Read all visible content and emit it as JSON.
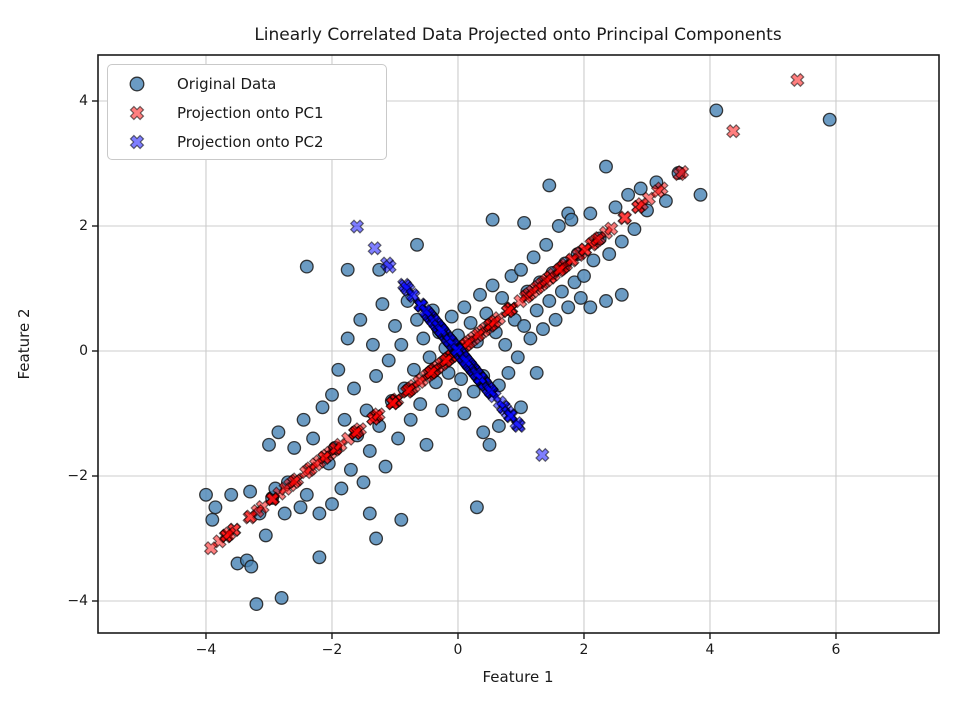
{
  "chart_data": {
    "type": "scatter",
    "title": "Linearly Correlated Data Projected onto Principal Components",
    "xlabel": "Feature 1",
    "ylabel": "Feature 2",
    "xlim": [
      -5.714,
      7.635
    ],
    "ylim": [
      -4.512,
      4.736
    ],
    "xticks": [
      -4,
      -2,
      0,
      2,
      4,
      6
    ],
    "yticks": [
      -4,
      -2,
      0,
      2,
      4
    ],
    "grid": true,
    "grid_color": "#cccccc",
    "spine_color": "#1a1a1a",
    "legend_position": "upper left",
    "pc1": [
      0.779,
      0.627
    ],
    "pc2": [
      -0.627,
      0.779
    ],
    "series": [
      {
        "name": "Original Data",
        "marker": "circle",
        "color": "#4682B4",
        "edge_color": "#1a1a1a",
        "alpha": 0.8,
        "source": "points"
      },
      {
        "name": "Projection onto PC1",
        "marker": "X",
        "color": "#FF0000",
        "edge_color": "#000000",
        "alpha": 0.5,
        "source": "projection of points onto pc1"
      },
      {
        "name": "Projection onto PC2",
        "marker": "X",
        "color": "#0000FF",
        "edge_color": "#000000",
        "alpha": 0.5,
        "source": "projection of points onto pc2"
      }
    ],
    "points": [
      [
        -4.0,
        -2.3
      ],
      [
        -3.9,
        -2.7
      ],
      [
        -3.85,
        -2.5
      ],
      [
        -3.6,
        -2.3
      ],
      [
        -3.5,
        -3.4
      ],
      [
        -3.35,
        -3.35
      ],
      [
        -3.28,
        -3.45
      ],
      [
        -3.3,
        -2.25
      ],
      [
        -3.2,
        -4.05
      ],
      [
        -3.15,
        -2.6
      ],
      [
        -3.05,
        -2.95
      ],
      [
        -3.0,
        -1.5
      ],
      [
        -2.95,
        -2.35
      ],
      [
        -2.8,
        -3.95
      ],
      [
        -2.9,
        -2.2
      ],
      [
        -2.85,
        -1.3
      ],
      [
        -2.75,
        -2.6
      ],
      [
        -2.7,
        -2.1
      ],
      [
        -2.6,
        -1.55
      ],
      [
        -2.5,
        -2.5
      ],
      [
        -2.45,
        -1.1
      ],
      [
        -2.4,
        1.35
      ],
      [
        -2.4,
        -2.3
      ],
      [
        -2.3,
        -1.4
      ],
      [
        -2.2,
        -3.3
      ],
      [
        -2.2,
        -2.6
      ],
      [
        -2.15,
        -0.9
      ],
      [
        -2.05,
        -1.8
      ],
      [
        -2.0,
        -2.45
      ],
      [
        -2.0,
        -0.7
      ],
      [
        -1.95,
        -1.55
      ],
      [
        -1.9,
        -0.3
      ],
      [
        -1.85,
        -2.2
      ],
      [
        -1.8,
        -1.1
      ],
      [
        -1.75,
        1.3
      ],
      [
        -1.75,
        0.2
      ],
      [
        -1.7,
        -1.9
      ],
      [
        -1.65,
        -0.6
      ],
      [
        -1.6,
        -1.35
      ],
      [
        -1.55,
        0.5
      ],
      [
        -1.5,
        -2.1
      ],
      [
        -1.45,
        -0.95
      ],
      [
        -1.4,
        -2.6
      ],
      [
        -1.4,
        -1.6
      ],
      [
        -1.35,
        0.1
      ],
      [
        -1.3,
        -3.0
      ],
      [
        -1.3,
        -0.4
      ],
      [
        -1.25,
        1.3
      ],
      [
        -1.25,
        -1.2
      ],
      [
        -1.2,
        0.75
      ],
      [
        -1.15,
        -1.85
      ],
      [
        -1.1,
        -0.15
      ],
      [
        -1.05,
        -0.8
      ],
      [
        -1.0,
        0.4
      ],
      [
        -0.95,
        -1.4
      ],
      [
        -0.9,
        -2.7
      ],
      [
        -0.9,
        0.1
      ],
      [
        -0.85,
        -0.6
      ],
      [
        -0.8,
        0.8
      ],
      [
        -0.75,
        -1.1
      ],
      [
        -0.7,
        -0.3
      ],
      [
        -0.65,
        1.7
      ],
      [
        -0.65,
        0.5
      ],
      [
        -0.6,
        -0.85
      ],
      [
        -0.55,
        0.2
      ],
      [
        -0.5,
        -1.5
      ],
      [
        -0.45,
        -0.1
      ],
      [
        -0.4,
        0.65
      ],
      [
        -0.35,
        -0.5
      ],
      [
        -0.3,
        0.3
      ],
      [
        -0.25,
        -0.95
      ],
      [
        -0.2,
        0.05
      ],
      [
        -0.15,
        -0.35
      ],
      [
        -0.1,
        0.55
      ],
      [
        -0.05,
        -0.7
      ],
      [
        0.0,
        0.25
      ],
      [
        0.05,
        -0.45
      ],
      [
        0.1,
        -1.0
      ],
      [
        0.1,
        0.7
      ],
      [
        0.15,
        -0.2
      ],
      [
        0.2,
        0.45
      ],
      [
        0.25,
        -0.65
      ],
      [
        0.3,
        -2.5
      ],
      [
        0.3,
        0.15
      ],
      [
        0.35,
        0.9
      ],
      [
        0.4,
        -1.3
      ],
      [
        0.4,
        -0.4
      ],
      [
        0.45,
        0.6
      ],
      [
        0.5,
        -1.5
      ],
      [
        0.55,
        2.1
      ],
      [
        0.55,
        1.05
      ],
      [
        0.6,
        0.3
      ],
      [
        0.65,
        -1.2
      ],
      [
        0.65,
        -0.55
      ],
      [
        0.7,
        0.85
      ],
      [
        0.75,
        0.1
      ],
      [
        0.8,
        -0.35
      ],
      [
        0.85,
        1.2
      ],
      [
        0.9,
        0.5
      ],
      [
        0.95,
        -0.1
      ],
      [
        1.0,
        -0.9
      ],
      [
        1.0,
        1.3
      ],
      [
        1.05,
        2.05
      ],
      [
        1.05,
        0.4
      ],
      [
        1.1,
        0.95
      ],
      [
        1.15,
        0.2
      ],
      [
        1.2,
        1.5
      ],
      [
        1.25,
        -0.35
      ],
      [
        1.25,
        0.65
      ],
      [
        1.3,
        1.1
      ],
      [
        1.35,
        0.35
      ],
      [
        1.4,
        1.7
      ],
      [
        1.45,
        2.65
      ],
      [
        1.45,
        0.8
      ],
      [
        1.5,
        1.25
      ],
      [
        1.55,
        0.5
      ],
      [
        1.6,
        2.0
      ],
      [
        1.65,
        0.95
      ],
      [
        1.7,
        1.4
      ],
      [
        1.75,
        2.2
      ],
      [
        1.75,
        0.7
      ],
      [
        1.8,
        2.1
      ],
      [
        1.85,
        1.1
      ],
      [
        1.9,
        1.55
      ],
      [
        1.95,
        0.85
      ],
      [
        2.0,
        1.2
      ],
      [
        2.1,
        0.7
      ],
      [
        2.1,
        2.2
      ],
      [
        2.15,
        1.45
      ],
      [
        2.25,
        1.8
      ],
      [
        2.35,
        0.8
      ],
      [
        2.35,
        2.95
      ],
      [
        2.4,
        1.55
      ],
      [
        2.5,
        2.3
      ],
      [
        2.6,
        0.9
      ],
      [
        2.6,
        1.75
      ],
      [
        2.7,
        2.5
      ],
      [
        2.8,
        1.95
      ],
      [
        2.9,
        2.6
      ],
      [
        3.0,
        2.25
      ],
      [
        3.15,
        2.7
      ],
      [
        3.3,
        2.4
      ],
      [
        3.5,
        2.85
      ],
      [
        3.85,
        2.5
      ],
      [
        4.1,
        3.85
      ],
      [
        5.9,
        3.7
      ]
    ]
  }
}
